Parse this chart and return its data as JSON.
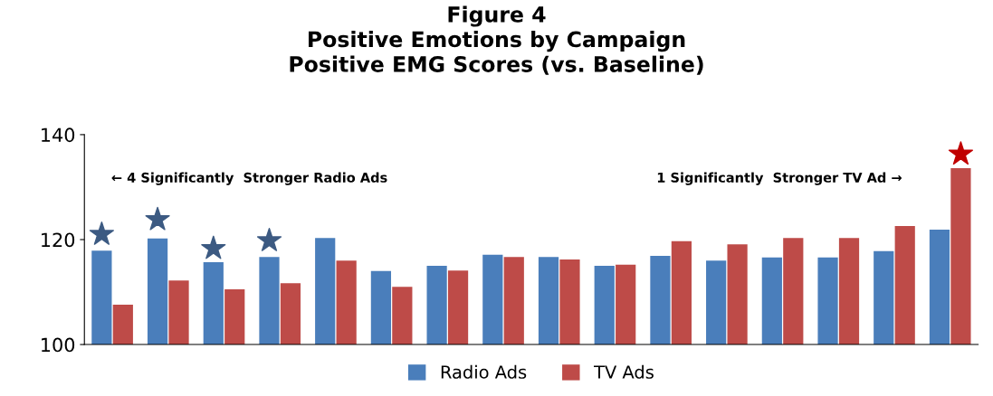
{
  "chart_data": {
    "type": "bar",
    "title": "Figure 4\nPositive Emotions by Campaign\nPositive EMG Scores (vs. Baseline)",
    "categories": [
      null,
      null,
      null,
      null,
      null,
      null,
      null,
      null,
      null,
      null,
      null,
      null,
      null,
      null,
      null,
      null
    ],
    "series": [
      {
        "name": "Radio Ads",
        "color": "#4a7ebb",
        "values": [
          117.9,
          120.2,
          115.7,
          116.7,
          120.3,
          114.0,
          115.0,
          117.1,
          116.7,
          115.0,
          116.9,
          116.0,
          116.6,
          116.6,
          117.8,
          121.9
        ]
      },
      {
        "name": "TV Ads",
        "color": "#be4b48",
        "values": [
          107.6,
          112.2,
          110.5,
          111.7,
          116.0,
          111.0,
          114.1,
          116.7,
          116.2,
          115.2,
          119.7,
          119.1,
          120.3,
          120.3,
          122.6,
          133.6
        ]
      },
      {
        "type": "scatter",
        "marker": "star",
        "color": "#3c5a82",
        "values": [
          121.0,
          123.8,
          118.3,
          119.8,
          null,
          null,
          null,
          null,
          null,
          null,
          null,
          null,
          null,
          null,
          null,
          null
        ]
      },
      {
        "type": "scatter",
        "marker": "star",
        "color": "#c00000",
        "values": [
          null,
          null,
          null,
          null,
          null,
          null,
          null,
          null,
          null,
          null,
          null,
          null,
          null,
          null,
          null,
          136.3
        ]
      }
    ],
    "ylim": [
      100,
      140
    ],
    "yticks": [
      100,
      120,
      140
    ],
    "grid": false,
    "legend": "bottom",
    "annotations": [
      "← 4 Significantly  Stronger Radio Ads",
      "1 Significantly  Stronger TV Ad →"
    ]
  }
}
